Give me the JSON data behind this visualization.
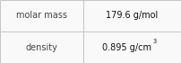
{
  "rows": [
    {
      "label": "molar mass",
      "value": "179.6 g/mol",
      "superscript": null
    },
    {
      "label": "density",
      "value": "0.895 g/cm",
      "superscript": "3"
    }
  ],
  "bg_color": "#f9f9f9",
  "border_color": "#bbbbbb",
  "label_color": "#444444",
  "value_color": "#111111",
  "font_size": 7.0,
  "sup_font_size": 4.8,
  "col_split": 0.46
}
